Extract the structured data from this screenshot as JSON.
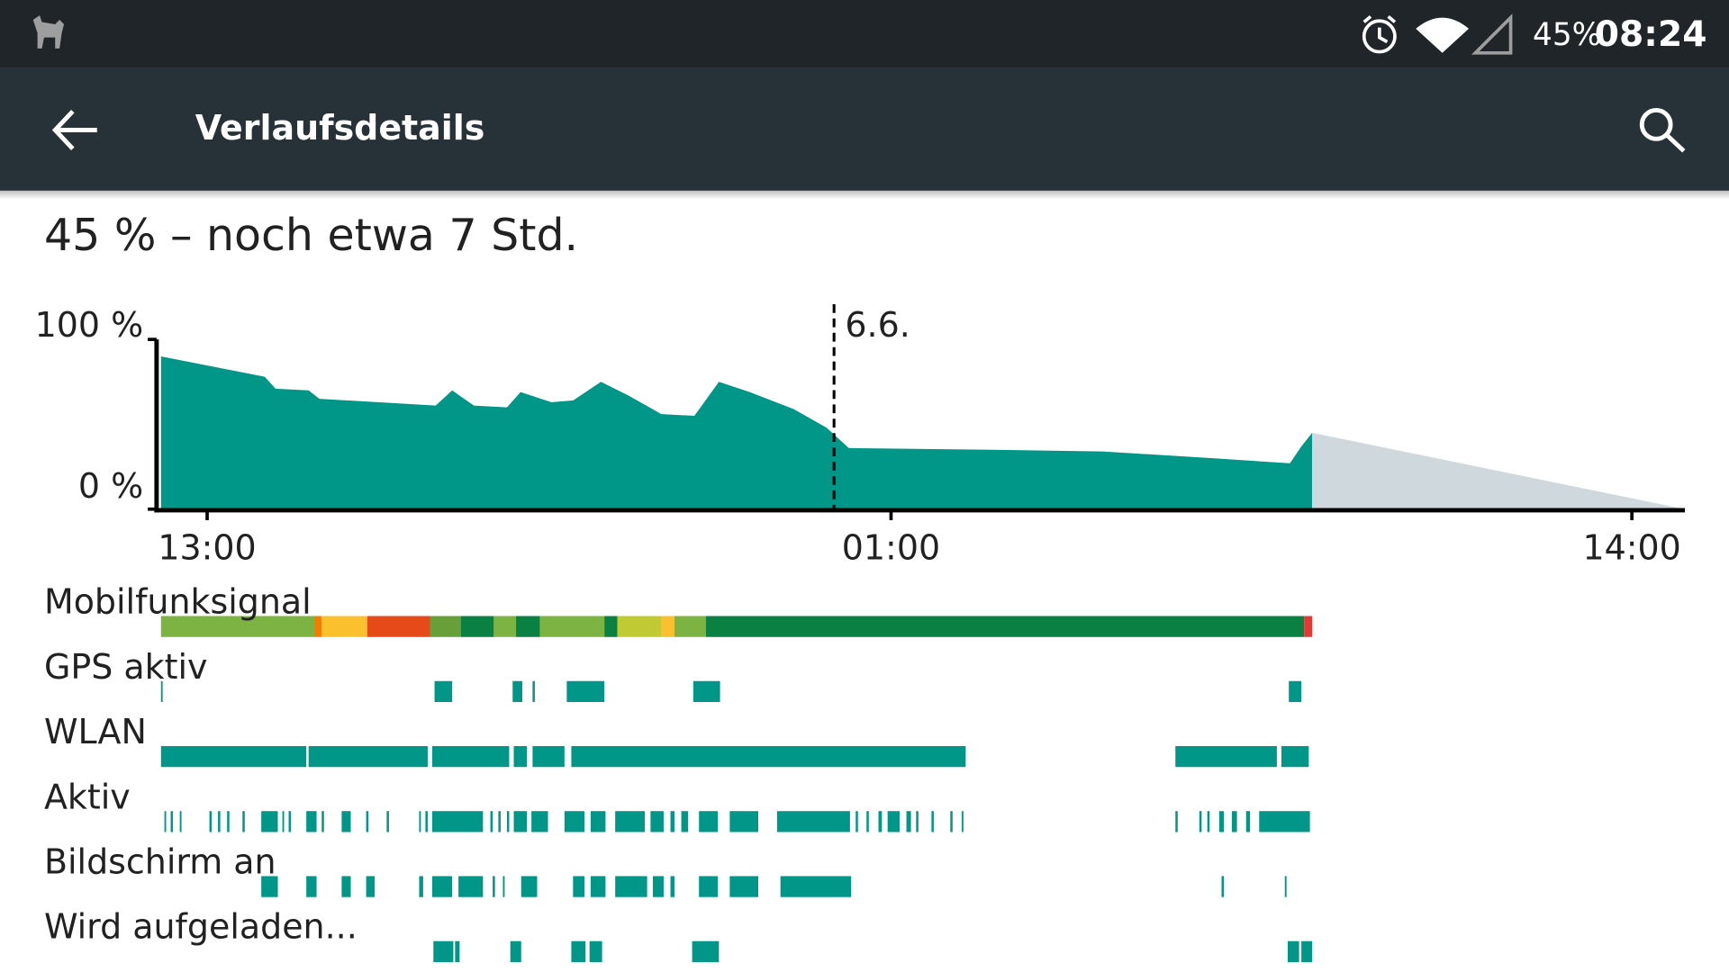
{
  "status_bar": {
    "battery": "45%",
    "time": "08:24"
  },
  "app_bar": {
    "title": "Verlaufsdetails"
  },
  "summary": "45 % – noch etwa 7 Std.",
  "chart_data": {
    "type": "area",
    "color": "#009688",
    "xlim": [
      -0.81,
      25.93
    ],
    "ylim": [
      0,
      100
    ],
    "yticks": [
      {
        "value": 100,
        "label": "100 %"
      },
      {
        "value": 0,
        "label": "0 %"
      }
    ],
    "xticks": [
      {
        "value": 0,
        "label": "13:00"
      },
      {
        "value": 12,
        "label": "01:00"
      },
      {
        "value": 25,
        "label": "14:00"
      }
    ],
    "x": [
      -0.81,
      1.01,
      1.2,
      1.78,
      1.97,
      4.01,
      4.3,
      4.68,
      5.26,
      5.5,
      6.04,
      6.42,
      6.91,
      7.39,
      7.97,
      8.55,
      8.98,
      9.52,
      10.29,
      10.87,
      11.26,
      13.78,
      15.71,
      17.65,
      19.0,
      19.2,
      19.39
    ],
    "values": [
      90,
      78,
      71,
      70,
      65,
      61,
      70,
      61,
      60,
      69,
      63,
      64,
      75,
      67,
      56,
      55,
      75,
      69,
      59,
      48,
      36,
      35,
      34,
      30,
      27,
      37,
      45
    ],
    "prediction": {
      "color": "#cfd8dc",
      "x": [
        19.39,
        25.93
      ],
      "values": [
        45,
        0
      ]
    },
    "marker": {
      "x": 11.0,
      "label": "6.6."
    }
  },
  "tracks": [
    {
      "name": "Mobilfunksignal",
      "segments": [
        [
          -0.81,
          1.88
        ],
        [
          1.88,
          2.01
        ],
        [
          2.01,
          2.81
        ],
        [
          2.81,
          3.91
        ],
        [
          3.91,
          4.45
        ],
        [
          4.45,
          5.03
        ],
        [
          5.03,
          5.42
        ],
        [
          5.42,
          5.84
        ],
        [
          5.84,
          6.97
        ],
        [
          6.97,
          7.2
        ],
        [
          7.2,
          7.97
        ],
        [
          7.97,
          8.2
        ],
        [
          8.2,
          8.75
        ],
        [
          8.75,
          19.25
        ],
        [
          19.25,
          19.39
        ]
      ],
      "colors": [
        "#7cb342",
        "#f57c00",
        "#fbc02d",
        "#e64a19",
        "#689f38",
        "#0b8043",
        "#7cb342",
        "#0b8043",
        "#7cb342",
        "#0b8043",
        "#c0ca33",
        "#fbc02d",
        "#7cb342",
        "#0b8043",
        "#e53935"
      ]
    },
    {
      "name": "GPS aktiv",
      "color": "#009688",
      "segments": [
        [
          -0.81,
          -0.79
        ],
        [
          3.99,
          4.3
        ],
        [
          5.36,
          5.53
        ],
        [
          5.71,
          5.75
        ],
        [
          6.31,
          6.97
        ],
        [
          8.53,
          9.0
        ],
        [
          18.98,
          19.2
        ]
      ]
    },
    {
      "name": "WLAN",
      "color": "#009688",
      "segments": [
        [
          -0.81,
          1.74
        ],
        [
          1.78,
          3.87
        ],
        [
          3.95,
          5.3
        ],
        [
          5.38,
          5.61
        ],
        [
          5.71,
          6.27
        ],
        [
          6.39,
          13.31
        ],
        [
          16.99,
          18.77
        ],
        [
          18.85,
          19.33
        ]
      ]
    },
    {
      "name": "Aktiv",
      "color": "#009688",
      "segments": [
        [
          -0.75,
          -0.72
        ],
        [
          -0.64,
          -0.6
        ],
        [
          -0.48,
          -0.45
        ],
        [
          0.04,
          0.08
        ],
        [
          0.19,
          0.23
        ],
        [
          0.35,
          0.39
        ],
        [
          0.62,
          0.66
        ],
        [
          0.95,
          1.24
        ],
        [
          1.32,
          1.35
        ],
        [
          1.43,
          1.47
        ],
        [
          1.74,
          1.92
        ],
        [
          2.01,
          2.05
        ],
        [
          2.36,
          2.52
        ],
        [
          2.79,
          2.83
        ],
        [
          3.15,
          3.19
        ],
        [
          3.72,
          3.75
        ],
        [
          3.83,
          3.87
        ],
        [
          3.95,
          4.84
        ],
        [
          4.97,
          5.01
        ],
        [
          5.11,
          5.15
        ],
        [
          5.26,
          5.3
        ],
        [
          5.38,
          5.61
        ],
        [
          5.69,
          5.98
        ],
        [
          6.27,
          6.62
        ],
        [
          6.73,
          6.99
        ],
        [
          7.16,
          7.68
        ],
        [
          7.78,
          8.01
        ],
        [
          8.13,
          8.2
        ],
        [
          8.32,
          8.44
        ],
        [
          8.63,
          8.96
        ],
        [
          9.17,
          9.67
        ],
        [
          10.0,
          11.28
        ],
        [
          11.38,
          11.42
        ],
        [
          11.57,
          11.61
        ],
        [
          11.78,
          11.84
        ],
        [
          11.94,
          12.15
        ],
        [
          12.27,
          12.35
        ],
        [
          12.44,
          12.48
        ],
        [
          12.71,
          12.75
        ],
        [
          13.04,
          13.08
        ],
        [
          13.24,
          13.27
        ],
        [
          16.99,
          17.03
        ],
        [
          17.41,
          17.45
        ],
        [
          17.55,
          17.59
        ],
        [
          17.76,
          17.84
        ],
        [
          17.98,
          18.07
        ],
        [
          18.23,
          18.3
        ],
        [
          18.46,
          19.35
        ]
      ]
    },
    {
      "name": "Bildschirm an",
      "color": "#009688",
      "segments": [
        [
          0.95,
          1.24
        ],
        [
          1.74,
          1.92
        ],
        [
          2.36,
          2.52
        ],
        [
          2.79,
          2.94
        ],
        [
          3.72,
          3.79
        ],
        [
          3.95,
          4.3
        ],
        [
          4.41,
          4.84
        ],
        [
          5.01,
          5.05
        ],
        [
          5.19,
          5.22
        ],
        [
          5.51,
          5.79
        ],
        [
          6.42,
          6.62
        ],
        [
          6.73,
          6.99
        ],
        [
          7.16,
          7.72
        ],
        [
          7.82,
          8.01
        ],
        [
          8.13,
          8.2
        ],
        [
          8.63,
          8.96
        ],
        [
          9.17,
          9.67
        ],
        [
          10.06,
          11.3
        ],
        [
          17.8,
          17.84
        ],
        [
          18.91,
          18.94
        ]
      ]
    },
    {
      "name": "Wird aufgeladen...",
      "color": "#009688",
      "segments": [
        [
          3.97,
          4.32
        ],
        [
          4.35,
          4.43
        ],
        [
          5.32,
          5.51
        ],
        [
          6.39,
          6.64
        ],
        [
          6.71,
          6.93
        ],
        [
          8.51,
          8.98
        ],
        [
          18.96,
          19.16
        ],
        [
          19.2,
          19.39
        ]
      ]
    }
  ]
}
